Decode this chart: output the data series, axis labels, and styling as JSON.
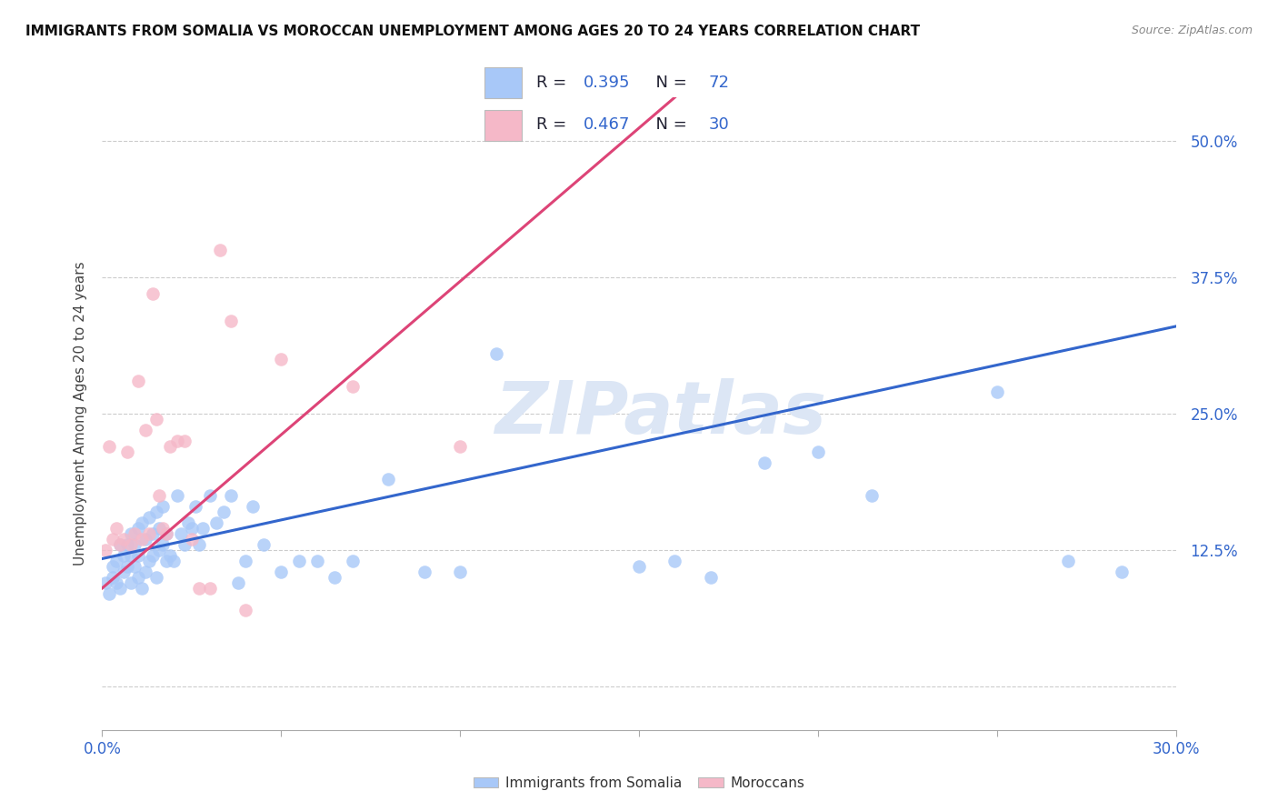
{
  "title": "IMMIGRANTS FROM SOMALIA VS MOROCCAN UNEMPLOYMENT AMONG AGES 20 TO 24 YEARS CORRELATION CHART",
  "source": "Source: ZipAtlas.com",
  "ylabel": "Unemployment Among Ages 20 to 24 years",
  "xlim": [
    0.0,
    0.3
  ],
  "ylim": [
    -0.04,
    0.54
  ],
  "xlabel_vals": [
    0.0,
    0.05,
    0.1,
    0.15,
    0.2,
    0.25,
    0.3
  ],
  "ylabel_vals": [
    0.0,
    0.125,
    0.25,
    0.375,
    0.5
  ],
  "xlabel_labels": [
    "0.0%",
    "",
    "",
    "",
    "",
    "",
    "30.0%"
  ],
  "ylabel_labels": [
    "",
    "12.5%",
    "25.0%",
    "37.5%",
    "50.0%"
  ],
  "legend_blue_R": "0.395",
  "legend_blue_N": "72",
  "legend_pink_R": "0.467",
  "legend_pink_N": "30",
  "blue_color": "#a8c8f8",
  "pink_color": "#f5b8c8",
  "line_blue": "#3366cc",
  "line_pink": "#dd4477",
  "text_blue": "#3366cc",
  "text_dark": "#222233",
  "watermark": "ZIPatlas",
  "watermark_color": "#dce6f5",
  "blue_scatter_x": [
    0.001,
    0.002,
    0.003,
    0.003,
    0.004,
    0.004,
    0.005,
    0.005,
    0.006,
    0.006,
    0.007,
    0.007,
    0.008,
    0.008,
    0.008,
    0.009,
    0.009,
    0.01,
    0.01,
    0.01,
    0.011,
    0.011,
    0.012,
    0.012,
    0.013,
    0.013,
    0.014,
    0.014,
    0.015,
    0.015,
    0.016,
    0.016,
    0.017,
    0.017,
    0.018,
    0.018,
    0.019,
    0.02,
    0.021,
    0.022,
    0.023,
    0.024,
    0.025,
    0.026,
    0.027,
    0.028,
    0.03,
    0.032,
    0.034,
    0.036,
    0.038,
    0.04,
    0.042,
    0.045,
    0.05,
    0.055,
    0.06,
    0.065,
    0.07,
    0.08,
    0.09,
    0.1,
    0.11,
    0.15,
    0.16,
    0.17,
    0.185,
    0.2,
    0.215,
    0.25,
    0.27,
    0.285
  ],
  "blue_scatter_y": [
    0.095,
    0.085,
    0.1,
    0.11,
    0.095,
    0.115,
    0.09,
    0.13,
    0.105,
    0.12,
    0.11,
    0.13,
    0.095,
    0.14,
    0.12,
    0.11,
    0.13,
    0.1,
    0.12,
    0.145,
    0.09,
    0.15,
    0.105,
    0.135,
    0.115,
    0.155,
    0.14,
    0.12,
    0.1,
    0.16,
    0.125,
    0.145,
    0.13,
    0.165,
    0.115,
    0.14,
    0.12,
    0.115,
    0.175,
    0.14,
    0.13,
    0.15,
    0.145,
    0.165,
    0.13,
    0.145,
    0.175,
    0.15,
    0.16,
    0.175,
    0.095,
    0.115,
    0.165,
    0.13,
    0.105,
    0.115,
    0.115,
    0.1,
    0.115,
    0.19,
    0.105,
    0.105,
    0.305,
    0.11,
    0.115,
    0.1,
    0.205,
    0.215,
    0.175,
    0.27,
    0.115,
    0.105
  ],
  "pink_scatter_x": [
    0.001,
    0.002,
    0.003,
    0.004,
    0.005,
    0.006,
    0.007,
    0.008,
    0.009,
    0.01,
    0.011,
    0.012,
    0.013,
    0.014,
    0.015,
    0.016,
    0.017,
    0.018,
    0.019,
    0.021,
    0.023,
    0.025,
    0.027,
    0.03,
    0.033,
    0.036,
    0.04,
    0.05,
    0.07,
    0.1
  ],
  "pink_scatter_y": [
    0.125,
    0.22,
    0.135,
    0.145,
    0.13,
    0.135,
    0.215,
    0.13,
    0.14,
    0.28,
    0.135,
    0.235,
    0.14,
    0.36,
    0.245,
    0.175,
    0.145,
    0.14,
    0.22,
    0.225,
    0.225,
    0.135,
    0.09,
    0.09,
    0.4,
    0.335,
    0.07,
    0.3,
    0.275,
    0.22
  ],
  "blue_line_x": [
    0.0,
    0.3
  ],
  "blue_line_y": [
    0.117,
    0.33
  ],
  "pink_line_x": [
    0.0,
    0.16
  ],
  "pink_line_y": [
    0.09,
    0.54
  ]
}
